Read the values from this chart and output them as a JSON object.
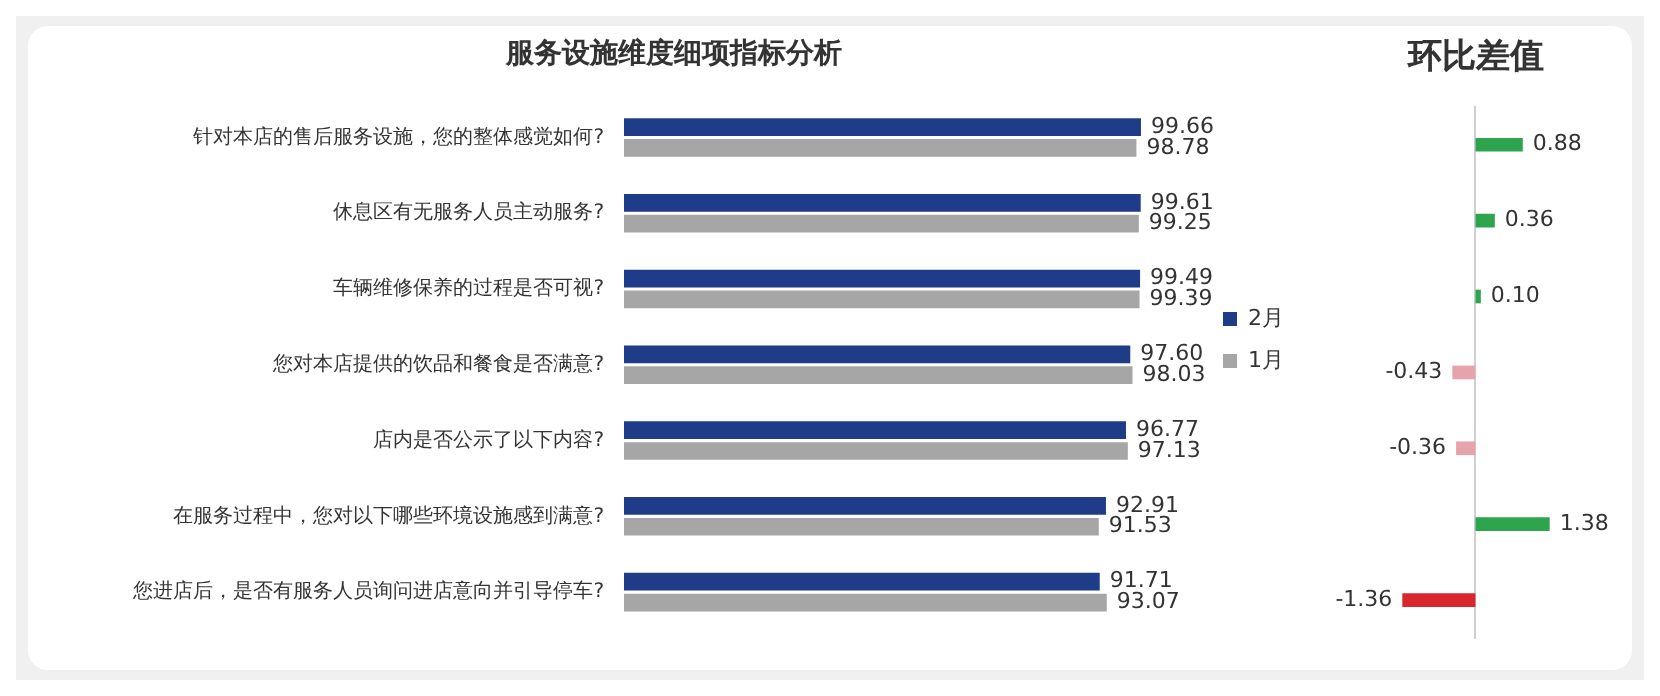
{
  "chart_data": [
    {
      "type": "bar",
      "title": "服务设施维度细项指标分析",
      "orientation": "horizontal",
      "categories": [
        "针对本店的售后服务设施，您的整体感觉如何?",
        "休息区有无服务人员主动服务?",
        "车辆维修保养的过程是否可视?",
        "您对本店提供的饮品和餐食是否满意?",
        "店内是否公示了以下内容?",
        "在服务过程中，您对以下哪些环境设施感到满意?",
        "您进店后，是否有服务人员询问进店意向并引导停车?"
      ],
      "series": [
        {
          "name": "2月",
          "color": "#1f3c88",
          "values": [
            99.66,
            99.61,
            99.49,
            97.6,
            96.77,
            92.91,
            91.71
          ],
          "value_labels": [
            "99.66",
            "99.61",
            "99.49",
            "97.60",
            "96.77",
            "92.91",
            "91.71"
          ]
        },
        {
          "name": "1月",
          "color": "#a6a6a6",
          "values": [
            98.78,
            99.25,
            99.39,
            98.03,
            97.13,
            91.53,
            93.07
          ],
          "value_labels": [
            "98.78",
            "99.25",
            "99.39",
            "98.03",
            "97.13",
            "91.53",
            "93.07"
          ]
        }
      ],
      "legend": "right",
      "grid": false,
      "tick_labels": "y"
    },
    {
      "type": "bar",
      "title": "环比差值",
      "orientation": "horizontal",
      "categories": [
        null,
        null,
        null,
        null,
        null,
        null,
        null
      ],
      "values": [
        0.88,
        0.36,
        0.1,
        -0.43,
        -0.36,
        1.38,
        -1.36
      ],
      "colors": [
        "#2ea44f",
        "#2ea44f",
        "#2ea44f",
        "#e7a3ab",
        "#e7a3ab",
        "#2ea44f",
        "#d9262c"
      ],
      "value_labels": [
        "0.88",
        "0.36",
        "0.10",
        "-0.43",
        "-0.36",
        "1.38",
        "-1.36"
      ],
      "legend": false,
      "grid": false,
      "tick_labels": false
    }
  ]
}
